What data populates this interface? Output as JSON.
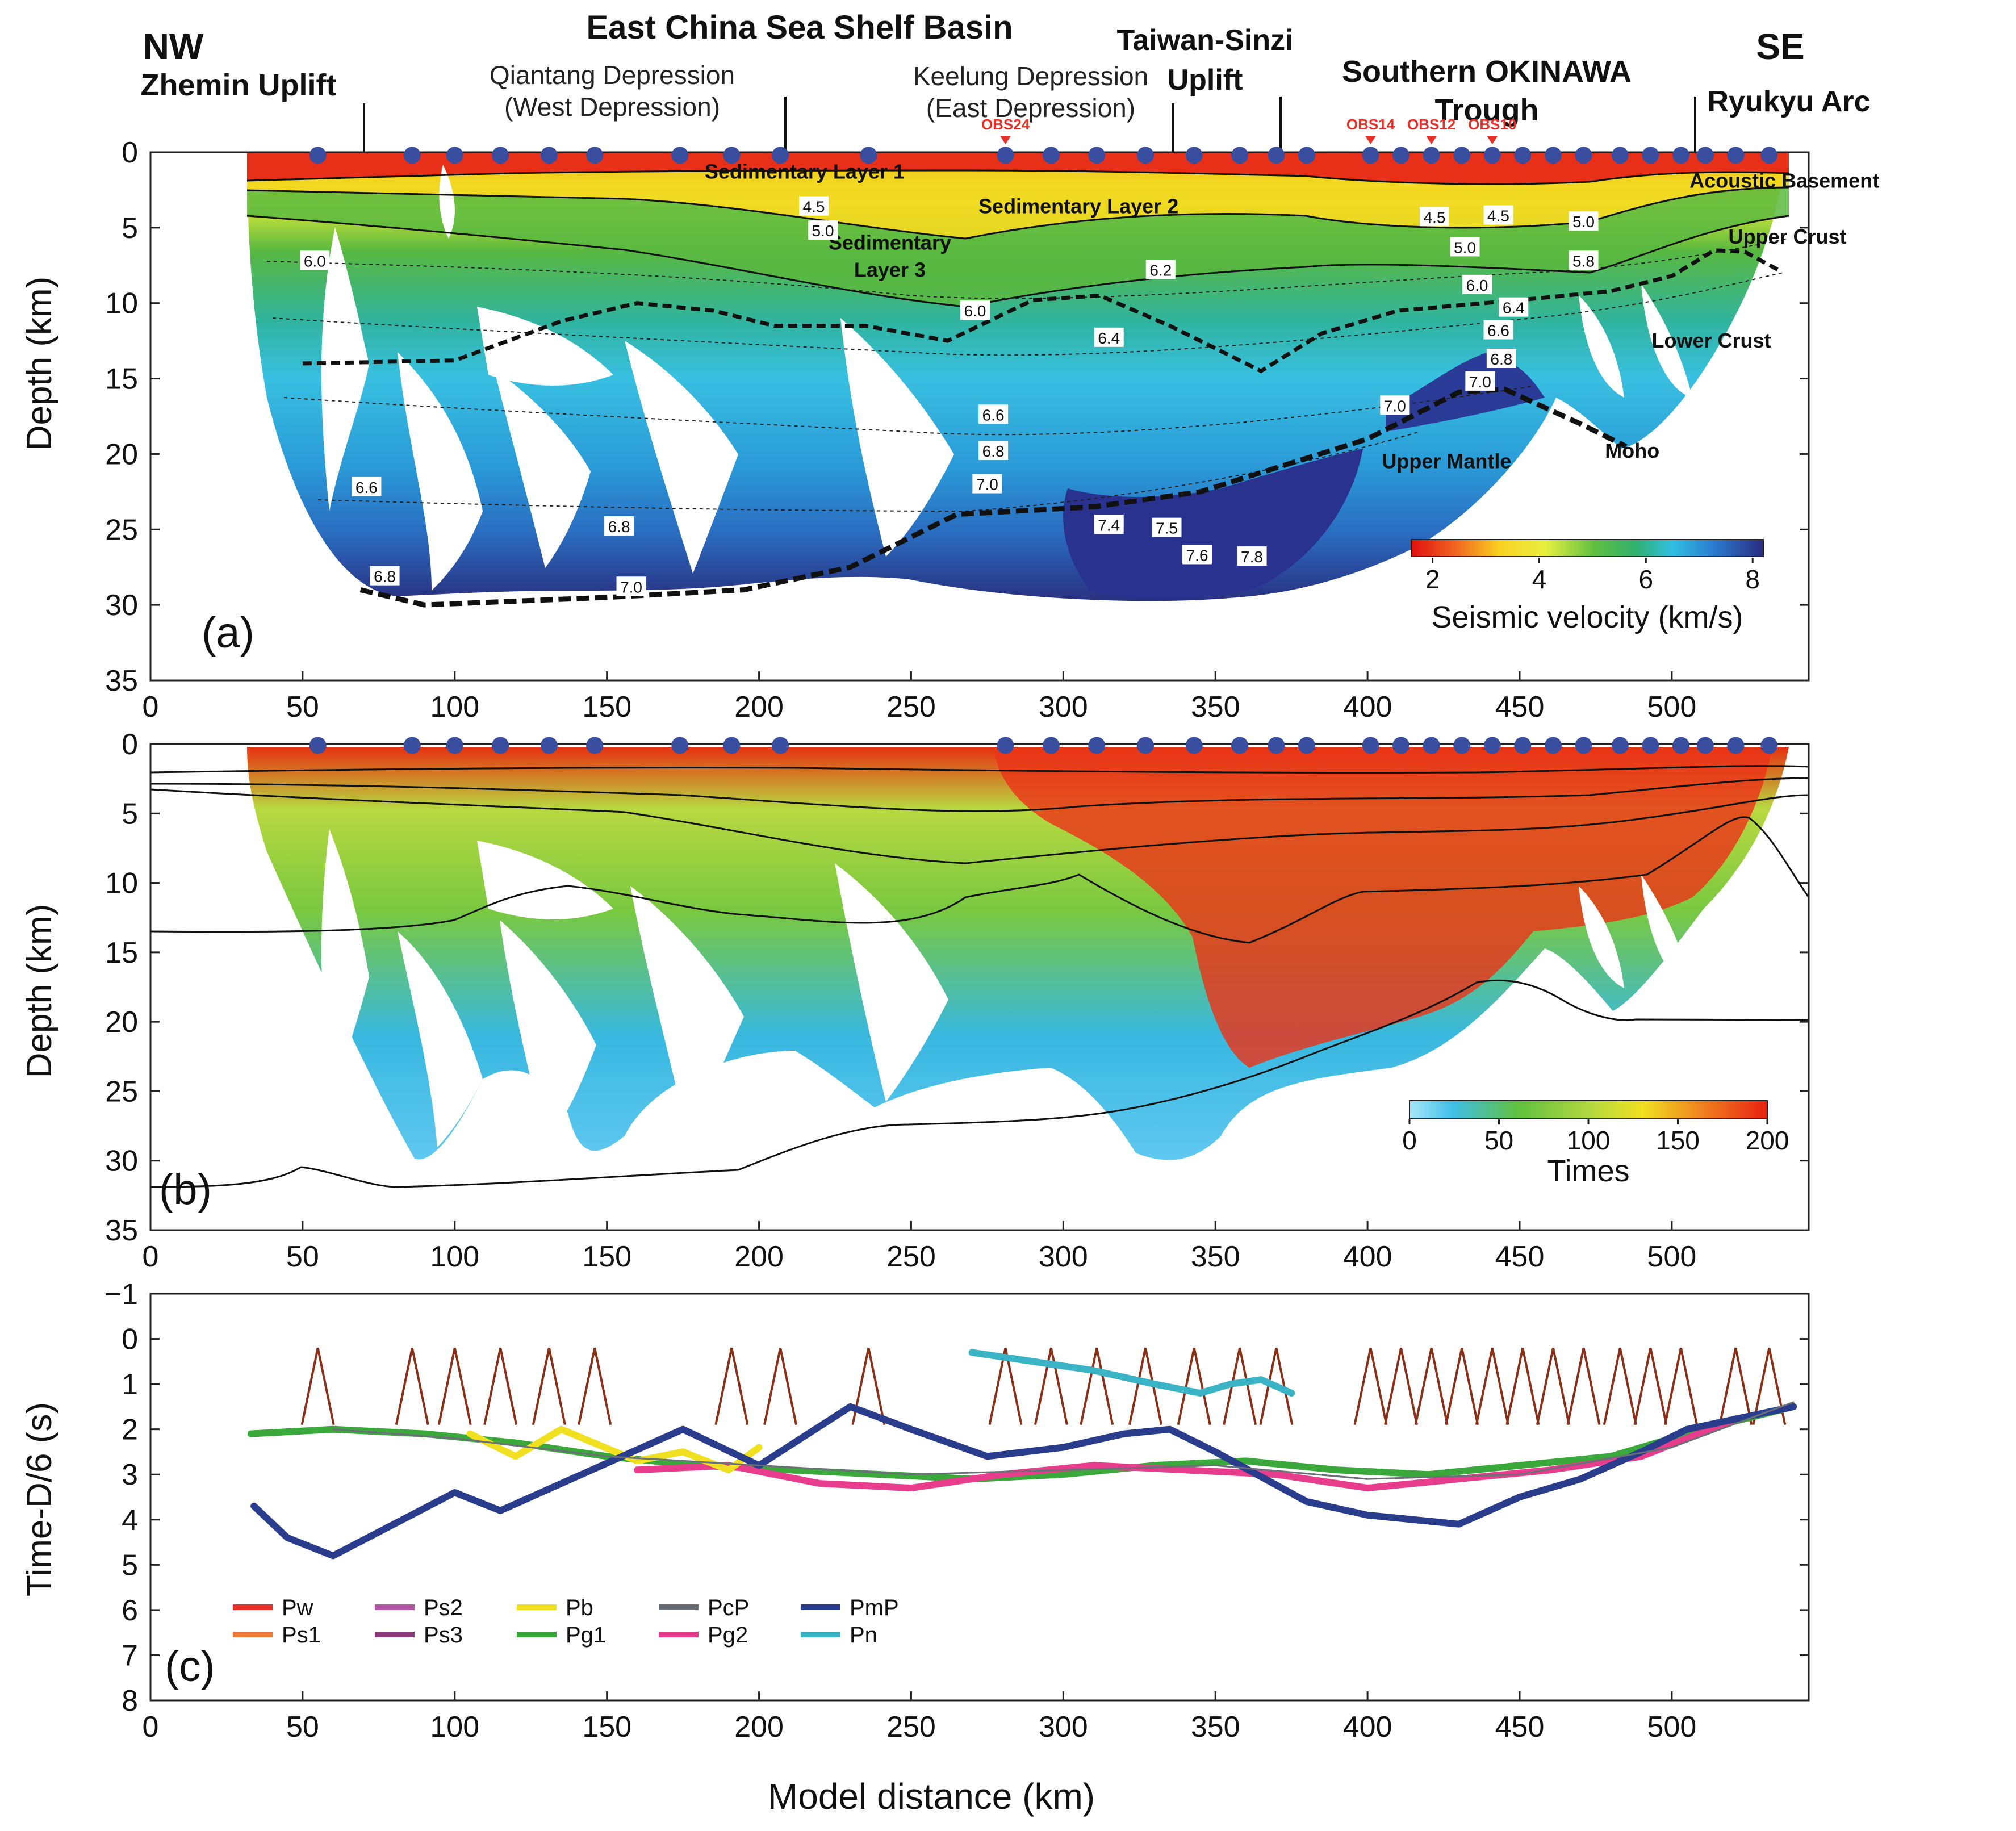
{
  "figure": {
    "header": {
      "nw": "NW",
      "se": "SE",
      "regions": [
        {
          "id": "zhemin",
          "title": "Zhemin Uplift",
          "sub": ""
        },
        {
          "id": "ecssb",
          "title": "East China Sea Shelf Basin",
          "sub": ""
        },
        {
          "id": "qiantang",
          "title": "",
          "sub": "Qiantang Depression",
          "sub2": "(West Depression)"
        },
        {
          "id": "keelung",
          "title": "",
          "sub": "Keelung Depression",
          "sub2": "(East Depression)"
        },
        {
          "id": "taiwan",
          "title": "Taiwan-Sinzi",
          "title2": "Uplift"
        },
        {
          "id": "okinawa",
          "title": "Southern OKINAWA",
          "title2": "Trough"
        },
        {
          "id": "ryukyu",
          "title": "Ryukyu Arc"
        }
      ],
      "obs_labels": [
        "OBS24",
        "OBS14",
        "OBS12",
        "OBS10"
      ]
    },
    "x_axis": {
      "label": "Model distance (km)",
      "min": 0,
      "max": 545,
      "ticks": [
        0,
        50,
        100,
        150,
        200,
        250,
        300,
        350,
        400,
        450,
        500
      ]
    },
    "colors": {
      "station": "#3a4ea0",
      "obs": "#e8302a",
      "frame": "#222222"
    }
  },
  "chart_data": [
    {
      "id": "a",
      "type": "heatmap",
      "panel_label": "(a)",
      "ylabel": "Depth (km)",
      "ylim": [
        0,
        35
      ],
      "yticks": [
        0,
        5,
        10,
        15,
        20,
        25,
        30,
        35
      ],
      "colorbar": {
        "label": "Seismic velocity (km/s)",
        "min": 1.6,
        "max": 8.2,
        "ticks": [
          2,
          4,
          6,
          8
        ]
      },
      "stations_km": [
        55,
        86,
        100,
        115,
        131,
        146,
        174,
        191,
        207,
        236,
        281,
        296,
        311,
        327,
        343,
        358,
        370,
        380,
        401,
        411,
        421,
        431,
        441,
        451,
        461,
        471,
        483,
        493,
        503,
        511,
        521,
        532
      ],
      "obs_km": [
        {
          "name": "OBS24",
          "x": 281
        },
        {
          "name": "OBS14",
          "x": 401
        },
        {
          "name": "OBS12",
          "x": 421
        },
        {
          "name": "OBS10",
          "x": 441
        }
      ],
      "layer_labels": [
        {
          "text": "Sedimentary Layer 1",
          "x": 215,
          "y": 1.3
        },
        {
          "text": "Sedimentary Layer 2",
          "x": 305,
          "y": 3.6
        },
        {
          "text": "Sedimentary",
          "x": 243,
          "y": 6.0
        },
        {
          "text": "Layer 3",
          "x": 243,
          "y": 7.8
        },
        {
          "text": "Acoustic Basement",
          "x": 537,
          "y": 1.9
        },
        {
          "text": "Upper Crust",
          "x": 538,
          "y": 5.6
        },
        {
          "text": "Lower  Crust",
          "x": 513,
          "y": 12.5
        },
        {
          "text": "Upper Mantle",
          "x": 426,
          "y": 20.5
        },
        {
          "text": "Moho",
          "x": 487,
          "y": 19.8
        }
      ],
      "contour_labels": [
        {
          "v": "4.5",
          "x": 218,
          "y": 3.6
        },
        {
          "v": "5.0",
          "x": 221,
          "y": 5.2
        },
        {
          "v": "6.0",
          "x": 54,
          "y": 7.2
        },
        {
          "v": "6.2",
          "x": 332,
          "y": 7.8
        },
        {
          "v": "6.0",
          "x": 271,
          "y": 10.5
        },
        {
          "v": "6.4",
          "x": 315,
          "y": 12.3
        },
        {
          "v": "4.5",
          "x": 422,
          "y": 4.3
        },
        {
          "v": "4.5",
          "x": 443,
          "y": 4.2
        },
        {
          "v": "5.0",
          "x": 471,
          "y": 4.6
        },
        {
          "v": "5.0",
          "x": 432,
          "y": 6.3
        },
        {
          "v": "5.8",
          "x": 471,
          "y": 7.2
        },
        {
          "v": "6.0",
          "x": 436,
          "y": 8.8
        },
        {
          "v": "6.4",
          "x": 448,
          "y": 10.3
        },
        {
          "v": "6.6",
          "x": 443,
          "y": 11.8
        },
        {
          "v": "6.8",
          "x": 444,
          "y": 13.7
        },
        {
          "v": "7.0",
          "x": 437,
          "y": 15.2
        },
        {
          "v": "7.0",
          "x": 409,
          "y": 16.8
        },
        {
          "v": "6.6",
          "x": 277,
          "y": 17.4
        },
        {
          "v": "6.8",
          "x": 277,
          "y": 19.8
        },
        {
          "v": "7.0",
          "x": 275,
          "y": 22.0
        },
        {
          "v": "6.6",
          "x": 71,
          "y": 22.2
        },
        {
          "v": "6.8",
          "x": 154,
          "y": 24.8
        },
        {
          "v": "7.4",
          "x": 315,
          "y": 24.7
        },
        {
          "v": "7.5",
          "x": 334,
          "y": 24.9
        },
        {
          "v": "7.6",
          "x": 344,
          "y": 26.7
        },
        {
          "v": "7.8",
          "x": 362,
          "y": 26.8
        },
        {
          "v": "6.8",
          "x": 77,
          "y": 28.1
        },
        {
          "v": "7.0",
          "x": 158,
          "y": 28.8
        }
      ],
      "moho_km": [
        [
          69,
          29.0
        ],
        [
          90,
          30.0
        ],
        [
          150,
          29.5
        ],
        [
          195,
          29.0
        ],
        [
          230,
          27.5
        ],
        [
          265,
          24.0
        ],
        [
          310,
          23.5
        ],
        [
          345,
          22.5
        ],
        [
          400,
          19.0
        ],
        [
          430,
          15.9
        ],
        [
          445,
          15.7
        ],
        [
          470,
          18.0
        ],
        [
          485,
          19.5
        ]
      ],
      "upper_lower_boundary_km": [
        [
          50,
          14.0
        ],
        [
          100,
          13.8
        ],
        [
          135,
          11.2
        ],
        [
          160,
          10.0
        ],
        [
          185,
          10.5
        ],
        [
          205,
          11.5
        ],
        [
          235,
          11.5
        ],
        [
          262,
          12.5
        ],
        [
          290,
          9.8
        ],
        [
          312,
          9.5
        ],
        [
          335,
          11.5
        ],
        [
          365,
          14.5
        ],
        [
          385,
          12.0
        ],
        [
          410,
          10.5
        ],
        [
          450,
          9.8
        ],
        [
          480,
          9.2
        ],
        [
          500,
          8.2
        ],
        [
          514,
          6.5
        ],
        [
          524,
          6.6
        ],
        [
          535,
          7.8
        ]
      ]
    },
    {
      "id": "b",
      "type": "heatmap",
      "panel_label": "(b)",
      "ylabel": "Depth (km)",
      "ylim": [
        0,
        35
      ],
      "yticks": [
        0,
        5,
        10,
        15,
        20,
        25,
        30,
        35
      ],
      "colorbar": {
        "label": "Times",
        "min": 0,
        "max": 200,
        "ticks": [
          0,
          50,
          100,
          150,
          200
        ]
      },
      "stations_km": [
        55,
        86,
        100,
        115,
        131,
        146,
        174,
        191,
        207,
        281,
        296,
        311,
        327,
        343,
        358,
        370,
        380,
        401,
        411,
        421,
        431,
        441,
        451,
        461,
        471,
        483,
        493,
        503,
        511,
        521,
        532
      ]
    },
    {
      "id": "c",
      "type": "line",
      "panel_label": "(c)",
      "ylabel": "Time-D/6 (s)",
      "ylim": [
        -1,
        8
      ],
      "yticks": [
        -1,
        0,
        1,
        2,
        3,
        4,
        5,
        6,
        7,
        8
      ],
      "legend": [
        {
          "name": "Pw",
          "color": "#e8302a"
        },
        {
          "name": "Ps1",
          "color": "#f07a3a"
        },
        {
          "name": "Ps2",
          "color": "#b45aa8"
        },
        {
          "name": "Ps3",
          "color": "#8c3c7c"
        },
        {
          "name": "Pb",
          "color": "#f0e020"
        },
        {
          "name": "Pg1",
          "color": "#3aa83a"
        },
        {
          "name": "PcP",
          "color": "#6a7078"
        },
        {
          "name": "Pg2",
          "color": "#e83c8c"
        },
        {
          "name": "PmP",
          "color": "#2a3c8c"
        },
        {
          "name": "Pn",
          "color": "#3ab4c4"
        }
      ],
      "direct_wave_apex_km": [
        55,
        86,
        100,
        115,
        131,
        146,
        191,
        207,
        236,
        281,
        296,
        311,
        327,
        343,
        358,
        370,
        401,
        411,
        421,
        431,
        441,
        451,
        461,
        471,
        483,
        493,
        503,
        521,
        532
      ],
      "series": [
        {
          "name": "Pg1",
          "x": [
            33,
            60,
            90,
            120,
            150,
            180,
            210,
            240,
            270,
            300,
            330,
            360,
            390,
            420,
            450,
            480,
            510,
            540
          ],
          "values": [
            2.1,
            2.0,
            2.1,
            2.3,
            2.6,
            2.8,
            2.9,
            3.0,
            3.1,
            3.0,
            2.8,
            2.7,
            2.9,
            3.0,
            2.8,
            2.6,
            2.0,
            1.5
          ]
        },
        {
          "name": "Pg2",
          "x": [
            160,
            190,
            220,
            250,
            280,
            310,
            340,
            370,
            400,
            430,
            460,
            490,
            520
          ],
          "values": [
            2.9,
            2.8,
            3.2,
            3.3,
            3.0,
            2.8,
            2.9,
            3.0,
            3.3,
            3.1,
            2.9,
            2.6,
            1.8
          ]
        },
        {
          "name": "Pb",
          "x": [
            105,
            120,
            135,
            160,
            175,
            190,
            200
          ],
          "values": [
            2.1,
            2.6,
            2.0,
            2.7,
            2.5,
            2.9,
            2.4
          ]
        },
        {
          "name": "PmP",
          "x": [
            34,
            45,
            60,
            100,
            115,
            175,
            200,
            230,
            250,
            275,
            300,
            320,
            335,
            350,
            380,
            400,
            430,
            450,
            470,
            490,
            505,
            540
          ],
          "values": [
            3.7,
            4.4,
            4.8,
            3.4,
            3.8,
            2.0,
            2.8,
            1.5,
            2.0,
            2.6,
            2.4,
            2.1,
            2.0,
            2.5,
            3.6,
            3.9,
            4.1,
            3.5,
            3.1,
            2.5,
            2.0,
            1.5
          ]
        },
        {
          "name": "Pn",
          "x": [
            270,
            290,
            310,
            330,
            345,
            355,
            365,
            375
          ],
          "values": [
            0.3,
            0.5,
            0.7,
            1.0,
            1.2,
            1.0,
            0.9,
            1.2
          ]
        },
        {
          "name": "PcP",
          "x": [
            60,
            100,
            150,
            200,
            250,
            300,
            350,
            400,
            450,
            500,
            540
          ],
          "values": [
            2.0,
            2.2,
            2.6,
            2.8,
            3.0,
            2.9,
            2.8,
            3.1,
            3.0,
            2.4,
            1.4
          ]
        }
      ]
    }
  ]
}
